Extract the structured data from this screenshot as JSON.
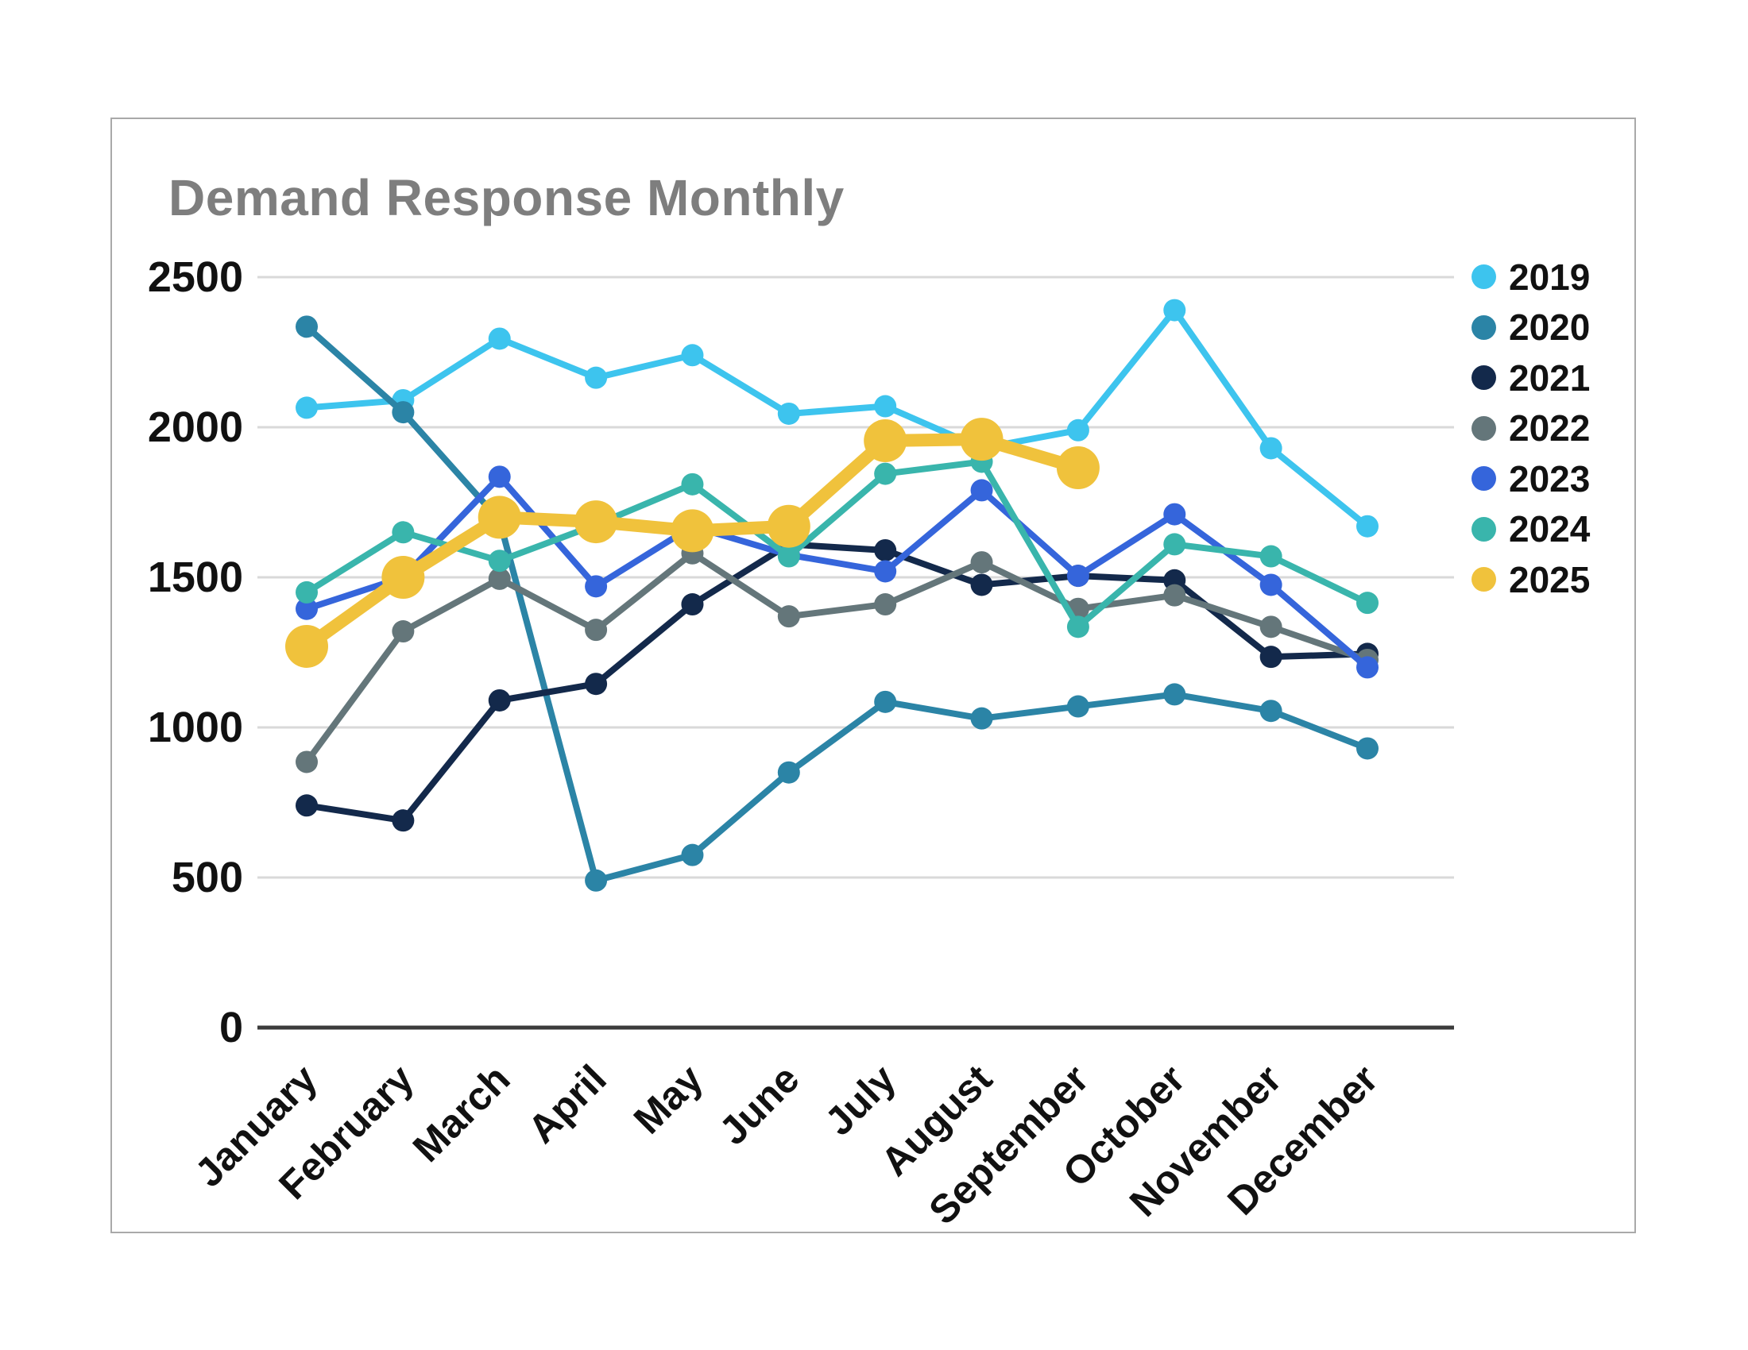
{
  "card": {
    "title": "Demand Response Monthly"
  },
  "chart_data": {
    "type": "line",
    "title": "Demand Response Monthly",
    "categories": [
      "January",
      "February",
      "March",
      "April",
      "May",
      "June",
      "July",
      "August",
      "September",
      "October",
      "November",
      "December"
    ],
    "series": [
      {
        "name": "2019",
        "color": "#3dc4ee",
        "values": [
          2065,
          2090,
          2295,
          2165,
          2240,
          2045,
          2070,
          1930,
          1990,
          2390,
          1930,
          1670
        ]
      },
      {
        "name": "2020",
        "color": "#2b84a6",
        "values": [
          2335,
          2050,
          1690,
          490,
          575,
          850,
          1085,
          1030,
          1070,
          1110,
          1055,
          930
        ]
      },
      {
        "name": "2021",
        "color": "#13294b",
        "values": [
          740,
          690,
          1090,
          1145,
          1410,
          1610,
          1590,
          1475,
          1505,
          1490,
          1235,
          1245
        ]
      },
      {
        "name": "2022",
        "color": "#64767a",
        "values": [
          885,
          1320,
          1495,
          1325,
          1580,
          1370,
          1410,
          1550,
          1395,
          1440,
          1335,
          1225
        ]
      },
      {
        "name": "2023",
        "color": "#3565db",
        "values": [
          1395,
          1500,
          1835,
          1470,
          1670,
          1575,
          1520,
          1790,
          1505,
          1710,
          1475,
          1200
        ]
      },
      {
        "name": "2024",
        "color": "#39b5ac",
        "values": [
          1450,
          1650,
          1555,
          1675,
          1810,
          1570,
          1845,
          1885,
          1335,
          1610,
          1570,
          1415
        ]
      },
      {
        "name": "2025",
        "color": "#f0c23c",
        "values": [
          1270,
          1500,
          1700,
          1685,
          1655,
          1670,
          1955,
          1960,
          1865,
          null,
          null,
          null
        ],
        "emphasized": true
      }
    ],
    "y_axis": {
      "min": 0,
      "max": 2500,
      "tick_interval": 500,
      "ticks": [
        0,
        500,
        1000,
        1500,
        2000,
        2500
      ]
    },
    "x_axis_label_rotation_deg": -45,
    "grid": true,
    "legend_position": "right"
  },
  "style_colors": {
    "gridline": "#d9d9d9",
    "axis_line": "#3b3b3b",
    "title_text": "#7e7e7e",
    "label_text": "#111111",
    "card_border": "#a9a9a9",
    "background": "#ffffff"
  }
}
